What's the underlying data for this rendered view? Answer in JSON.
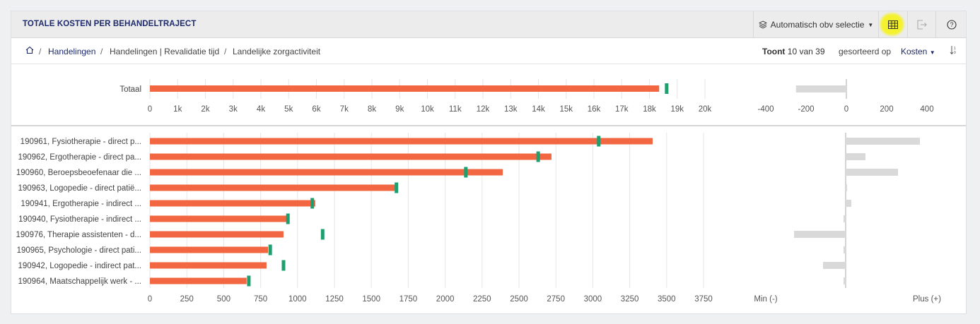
{
  "header": {
    "title": "TOTALE KOSTEN PER BEHANDELTRAJECT",
    "selection_label": "Automatisch obv selectie"
  },
  "breadcrumb": {
    "home_icon": "home-icon",
    "items": [
      "Handelingen",
      "Handelingen | Revalidatie tijd",
      "Landelijke zorgactiviteit"
    ],
    "separator": "/"
  },
  "info": {
    "shows_bold": "Toont",
    "shows_rest": "10 van 39",
    "sorted_by": "gesorteerd op",
    "sort_field": "Kosten"
  },
  "colors": {
    "bar": "#f26641",
    "marker": "#1f9e6e",
    "diff": "#d9d9d9",
    "accent": "#1d2a6b"
  },
  "chart_data": [
    {
      "type": "bar",
      "orientation": "horizontal",
      "categories": [
        "Totaal"
      ],
      "values": [
        18350
      ],
      "markers": [
        18620
      ],
      "xlim": [
        0,
        20000
      ],
      "xticks": [
        "0",
        "1k",
        "2k",
        "3k",
        "4k",
        "5k",
        "6k",
        "7k",
        "8k",
        "9k",
        "10k",
        "11k",
        "12k",
        "13k",
        "14k",
        "15k",
        "16k",
        "17k",
        "18k",
        "19k",
        "20k"
      ]
    },
    {
      "type": "bar",
      "orientation": "horizontal",
      "categories": [
        "Totaal"
      ],
      "values": [
        -250
      ],
      "xlim": [
        -400,
        400
      ],
      "xticks": [
        "-400",
        "-200",
        "0",
        "200",
        "400"
      ]
    },
    {
      "type": "bar",
      "orientation": "horizontal",
      "categories": [
        "190961, Fysiotherapie - direct p...",
        "190962, Ergotherapie - direct pa...",
        "190960, Beroepsbeoefenaar die ...",
        "190963, Logopedie - direct patië...",
        "190941, Ergotherapie - indirect ...",
        "190940, Fysiotherapie - indirect ...",
        "190976, Therapie assistenten - d...",
        "190965, Psychologie - direct pati...",
        "190942, Logopedie - indirect pat...",
        "190964, Maatschappelijk werk - ..."
      ],
      "values": [
        3405,
        2720,
        2390,
        1660,
        1120,
        925,
        905,
        800,
        790,
        655
      ],
      "markers": [
        3040,
        2630,
        2140,
        1670,
        1100,
        935,
        1170,
        815,
        905,
        670
      ],
      "xlim": [
        0,
        3750
      ],
      "xticks": [
        "0",
        "250",
        "500",
        "750",
        "1000",
        "1250",
        "1500",
        "1750",
        "2000",
        "2250",
        "2500",
        "2750",
        "3000",
        "3250",
        "3500",
        "3750"
      ]
    },
    {
      "type": "bar",
      "orientation": "horizontal",
      "values": [
        105,
        28,
        74,
        2,
        8,
        -3,
        -73,
        -3,
        -32,
        -3
      ],
      "labels": {
        "min": "Min (-)",
        "plus": "Plus (+)"
      }
    }
  ]
}
